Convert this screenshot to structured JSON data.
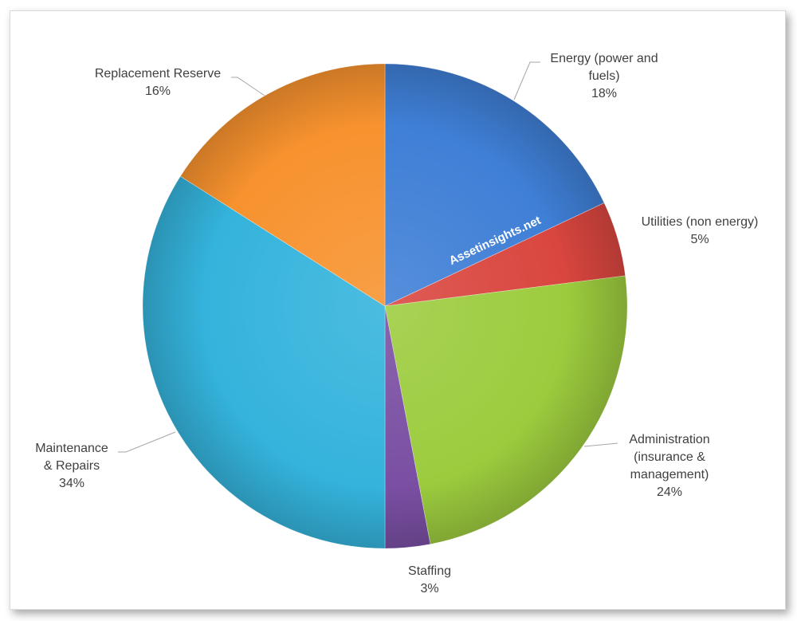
{
  "chart_data": {
    "type": "pie",
    "title": "",
    "watermark": "Assetinsights.net",
    "legend": "none",
    "slices": [
      {
        "label_lines": [
          "Energy (power and",
          "fuels)"
        ],
        "value": 18,
        "value_label": "18%",
        "color": "#3F7FD6"
      },
      {
        "label_lines": [
          "Utilities (non energy)"
        ],
        "value": 5,
        "value_label": "5%",
        "color": "#D9463F"
      },
      {
        "label_lines": [
          "Administration",
          "(insurance &",
          "management)"
        ],
        "value": 24,
        "value_label": "24%",
        "color": "#9CCC3E"
      },
      {
        "label_lines": [
          "Staffing"
        ],
        "value": 3,
        "value_label": "3%",
        "color": "#7A4FA3"
      },
      {
        "label_lines": [
          "Maintenance",
          "& Repairs"
        ],
        "value": 34,
        "value_label": "34%",
        "color": "#34B3DC"
      },
      {
        "label_lines": [
          "Replacement Reserve"
        ],
        "value": 16,
        "value_label": "16%",
        "color": "#F7922E"
      }
    ]
  }
}
